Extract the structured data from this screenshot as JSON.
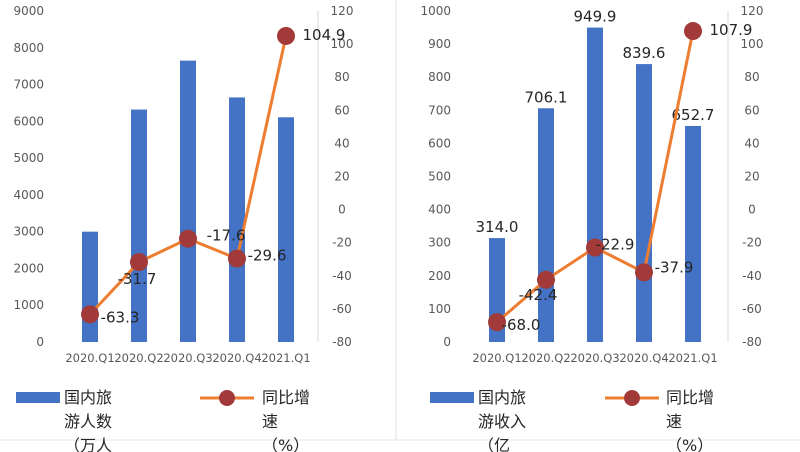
{
  "colors": {
    "bar": "#4472C4",
    "line": "#ED7D31",
    "marker": "#A33A3A",
    "axis_text": "#595959",
    "value_text": "#262626",
    "divider": "#E0E0E0"
  },
  "chart_data": [
    {
      "type": "bar",
      "categories": [
        "2020.Q1",
        "2020.Q2",
        "2020.Q3",
        "2020.Q4",
        "2021.Q1"
      ],
      "series": [
        {
          "name": "国内旅游人数（万人",
          "type": "bar",
          "axis": "left",
          "values": [
            3000,
            6320,
            7650,
            6650,
            6110
          ]
        },
        {
          "name": "同比增速（%）",
          "type": "line",
          "axis": "right",
          "values": [
            -63.3,
            -31.7,
            -17.6,
            -29.6,
            104.9
          ]
        }
      ],
      "bar_labels": [
        "",
        "",
        "",
        "",
        ""
      ],
      "line_labels": [
        "-63.3",
        "-31.7",
        "-17.6",
        "-29.6",
        "104.9"
      ],
      "ylim_left": [
        0,
        9000
      ],
      "yticks_left": [
        "0",
        "1000",
        "2000",
        "3000",
        "4000",
        "5000",
        "6000",
        "7000",
        "8000",
        "9000"
      ],
      "ylim_right": [
        -80,
        120
      ],
      "yticks_right": [
        "-80",
        "-60",
        "-40",
        "-20",
        "0",
        "20",
        "40",
        "60",
        "80",
        "100",
        "120"
      ],
      "legend": {
        "position": "bottom",
        "bar_label_lines": [
          "国内旅",
          "游人数",
          "（万人"
        ],
        "line_label_lines": [
          "同比增",
          "速",
          "（%）"
        ]
      }
    },
    {
      "type": "bar",
      "categories": [
        "2020.Q1",
        "2020.Q2",
        "2020.Q3",
        "2020.Q4",
        "2021.Q1"
      ],
      "series": [
        {
          "name": "国内旅游收入（亿",
          "type": "bar",
          "axis": "left",
          "values": [
            314.0,
            706.1,
            949.9,
            839.6,
            652.7
          ]
        },
        {
          "name": "同比增速（%）",
          "type": "line",
          "axis": "right",
          "values": [
            -68.0,
            -42.4,
            -22.9,
            -37.9,
            107.9
          ]
        }
      ],
      "bar_labels": [
        "314.0",
        "706.1",
        "949.9",
        "839.6",
        "652.7"
      ],
      "line_labels": [
        "-68.0",
        "-42.4",
        "-22.9",
        "-37.9",
        "107.9"
      ],
      "ylim_left": [
        0,
        1000
      ],
      "yticks_left": [
        "0",
        "100",
        "200",
        "300",
        "400",
        "500",
        "600",
        "700",
        "800",
        "900",
        "1000"
      ],
      "ylim_right": [
        -80,
        120
      ],
      "yticks_right": [
        "-80",
        "-60",
        "-40",
        "-20",
        "0",
        "20",
        "40",
        "60",
        "80",
        "100",
        "120"
      ],
      "legend": {
        "position": "bottom",
        "bar_label_lines": [
          "国内旅",
          "游收入",
          "（亿"
        ],
        "line_label_lines": [
          "同比增",
          "速",
          "（%）"
        ]
      }
    }
  ]
}
